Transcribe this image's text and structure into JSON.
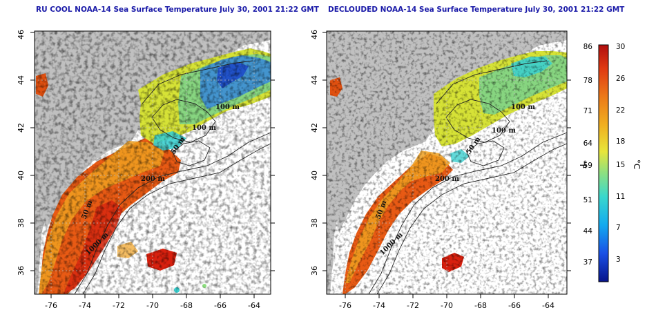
{
  "maps": [
    {
      "title": "RU COOL NOAA-14 Sea Surface Temperature July 30, 2001 21:22 GMT",
      "contour_labels": [
        "100 m",
        "100 m",
        "50 m",
        "200 m",
        "50 m",
        "1000 m"
      ]
    },
    {
      "title": "DECLOUDED NOAA-14 Sea Surface Temperature July 30, 2001 21:22 GMT",
      "contour_labels": [
        "100 m",
        "100 m",
        "50 m",
        "200 m",
        "50 m",
        "1000 m"
      ]
    }
  ],
  "axes": {
    "lon_ticks": [
      "-76",
      "-74",
      "-72",
      "-70",
      "-68",
      "-66",
      "-64"
    ],
    "lat_ticks": [
      "36",
      "38",
      "40",
      "42",
      "44",
      "46"
    ],
    "lon_range": [
      -77.2,
      -63.0
    ],
    "lat_range": [
      35.0,
      46.0
    ]
  },
  "colorbar": {
    "f_labels": [
      "86",
      "78",
      "71",
      "64",
      "59",
      "51",
      "44",
      "37"
    ],
    "c_labels": [
      "30",
      "26",
      "22",
      "18",
      "15",
      "11",
      "7",
      "3"
    ],
    "f_unit": "°F",
    "c_unit": "°C",
    "colors": [
      "#08148a",
      "#1a50e6",
      "#12aaf0",
      "#3ad8cc",
      "#8ee080",
      "#e8e63a",
      "#f0b020",
      "#ec7a18",
      "#e03a12",
      "#b00e0e"
    ]
  },
  "colors": {
    "land": "#c0c0c0",
    "ocean_nodata": "#ffffff",
    "title": "#1a1aa8",
    "contour": "#222222",
    "grid": "#bdbdbd"
  }
}
